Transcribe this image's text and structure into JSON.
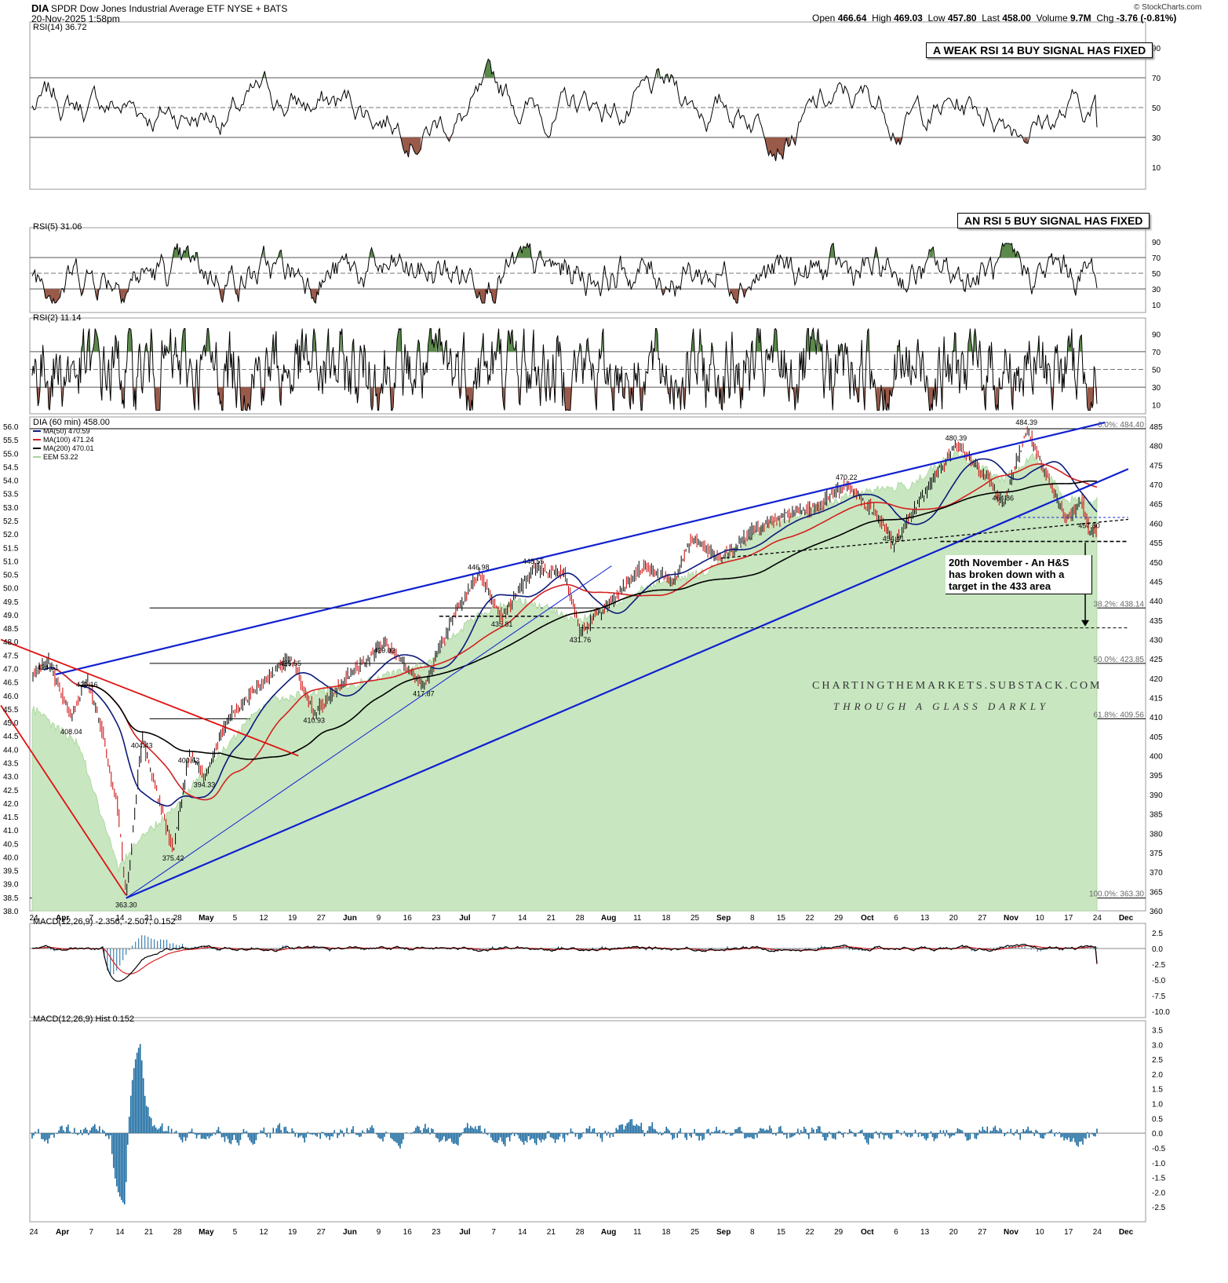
{
  "header": {
    "symbol": "DIA",
    "name": "SPDR Dow Jones Industrial Average ETF",
    "exchange": "NYSE + BATS",
    "datetime": "20-Nov-2025 1:58pm",
    "open_label": "Open",
    "open": "466.64",
    "high_label": "High",
    "high": "469.03",
    "low_label": "Low",
    "low": "457.80",
    "last_label": "Last",
    "last": "458.00",
    "volume_label": "Volume",
    "volume": "9.7M",
    "chg_label": "Chg",
    "chg": "-3.76 (-0.81%)",
    "source": "© StockCharts.com"
  },
  "annotations": {
    "rsi14_note": "A WEAK RSI 14 BUY SIGNAL HAS FIXED",
    "rsi5_note": "AN RSI 5 BUY SIGNAL HAS FIXED",
    "hs_note": "20th November - An H&S has broken down with a target in the 433 area",
    "watermark_line1": "CHARTINGTHEMARKETS.SUBSTACK.COM",
    "watermark_line2": "THROUGH A GLASS DARKLY"
  },
  "colors": {
    "price_up": "#000000",
    "price_down": "#cc0000",
    "ma50": "#0b1a7a",
    "ma100": "#d42020",
    "ma200": "#000000",
    "eem_fill": "#c8e6c0",
    "eem_line": "#a8d59a",
    "trend_blue": "#1020d0",
    "trend_red": "#e01010",
    "rsi_over": "#5a8a4a",
    "rsi_under": "#9a5a4a",
    "macd_hist": "#1a6aa0",
    "macd_signal": "#d42020"
  },
  "x_axis_labels": [
    "24",
    "Apr",
    "7",
    "14",
    "21",
    "28",
    "May",
    "5",
    "12",
    "19",
    "27",
    "Jun",
    "9",
    "16",
    "23",
    "Jul",
    "7",
    "14",
    "21",
    "28",
    "Aug",
    "11",
    "18",
    "25",
    "Sep",
    "8",
    "15",
    "22",
    "29",
    "Oct",
    "6",
    "13",
    "20",
    "27",
    "Nov",
    "10",
    "17",
    "24",
    "Dec"
  ],
  "chart_data": [
    {
      "type": "line",
      "title": "RSI(14) 36.72",
      "ylim": [
        0,
        100
      ],
      "y_ticks": [
        10,
        30,
        50,
        70,
        90
      ],
      "levels": [
        30,
        50,
        70
      ],
      "last": 36.72
    },
    {
      "type": "line",
      "title": "RSI(5) 31.06",
      "ylim": [
        0,
        100
      ],
      "y_ticks": [
        10,
        30,
        50,
        70,
        90
      ],
      "levels": [
        30,
        50,
        70
      ],
      "last": 31.06
    },
    {
      "type": "line",
      "title": "RSI(2) 11.14",
      "ylim": [
        0,
        100
      ],
      "y_ticks": [
        10,
        30,
        50,
        70,
        90
      ],
      "levels": [
        30,
        50,
        70
      ],
      "last": 11.14
    },
    {
      "type": "line",
      "title": "DIA (60 min) 458.00",
      "ylim": [
        360,
        485
      ],
      "y_ticks": [
        360,
        365,
        370,
        375,
        380,
        385,
        390,
        395,
        400,
        405,
        410,
        415,
        420,
        425,
        430,
        435,
        440,
        445,
        450,
        455,
        460,
        465,
        470,
        475,
        480,
        485
      ],
      "left_axis_label": "EEM",
      "left_ylim": [
        38.0,
        56.0
      ],
      "left_ticks": [
        "38.0",
        "38.5",
        "39.0",
        "39.5",
        "40.0",
        "40.5",
        "41.0",
        "41.5",
        "42.0",
        "42.5",
        "43.0",
        "43.5",
        "44.0",
        "44.5",
        "45.0",
        "45.5",
        "46.0",
        "46.5",
        "47.0",
        "47.5",
        "48.0",
        "48.5",
        "49.0",
        "49.5",
        "50.0",
        "50.5",
        "51.0",
        "51.5",
        "52.0",
        "52.5",
        "53.0",
        "53.5",
        "54.0",
        "54.5",
        "55.0",
        "55.5",
        "56.0"
      ],
      "legend": [
        {
          "name": "MA(50) 470.59",
          "color": "#0b1a7a"
        },
        {
          "name": "MA(100) 471.24",
          "color": "#d42020"
        },
        {
          "name": "MA(200) 470.01",
          "color": "#000000"
        },
        {
          "name": "EEM 53.22",
          "color": "#a8d59a"
        }
      ],
      "fib_levels": [
        {
          "label": "0.0%: 484.40",
          "value": 484.4
        },
        {
          "label": "38.2%: 438.14",
          "value": 438.14
        },
        {
          "label": "50.0%: 423.85",
          "value": 423.85
        },
        {
          "label": "61.8%: 409.56",
          "value": 409.56
        },
        {
          "label": "100.0%: 363.30",
          "value": 363.3
        }
      ],
      "price_anchors": [
        {
          "x": 0,
          "y": 421
        },
        {
          "x": 2,
          "y": 424.61
        },
        {
          "x": 5,
          "y": 410
        },
        {
          "x": 7,
          "y": 420.16
        },
        {
          "x": 9,
          "y": 406
        },
        {
          "x": 11,
          "y": 385
        },
        {
          "x": 12,
          "y": 363.3
        },
        {
          "x": 14,
          "y": 404.43
        },
        {
          "x": 16,
          "y": 390
        },
        {
          "x": 18,
          "y": 375.42
        },
        {
          "x": 20,
          "y": 400.62
        },
        {
          "x": 22,
          "y": 394.33
        },
        {
          "x": 25,
          "y": 410
        },
        {
          "x": 29,
          "y": 418
        },
        {
          "x": 33,
          "y": 425.65
        },
        {
          "x": 36,
          "y": 410.93
        },
        {
          "x": 40,
          "y": 420
        },
        {
          "x": 45,
          "y": 429.03
        },
        {
          "x": 50,
          "y": 417.87
        },
        {
          "x": 54,
          "y": 437
        },
        {
          "x": 57,
          "y": 446.98
        },
        {
          "x": 60,
          "y": 435.81
        },
        {
          "x": 64,
          "y": 448.55
        },
        {
          "x": 68,
          "y": 447
        },
        {
          "x": 70,
          "y": 431.76
        },
        {
          "x": 74,
          "y": 440
        },
        {
          "x": 78,
          "y": 449
        },
        {
          "x": 82,
          "y": 445
        },
        {
          "x": 84,
          "y": 456
        },
        {
          "x": 88,
          "y": 451
        },
        {
          "x": 92,
          "y": 458
        },
        {
          "x": 96,
          "y": 462
        },
        {
          "x": 100,
          "y": 464
        },
        {
          "x": 104,
          "y": 470.22
        },
        {
          "x": 108,
          "y": 462
        },
        {
          "x": 110,
          "y": 454.41
        },
        {
          "x": 114,
          "y": 468
        },
        {
          "x": 118,
          "y": 480.39
        },
        {
          "x": 122,
          "y": 472
        },
        {
          "x": 124,
          "y": 464.86
        },
        {
          "x": 127,
          "y": 484.39
        },
        {
          "x": 130,
          "y": 470
        },
        {
          "x": 132,
          "y": 461
        },
        {
          "x": 134,
          "y": 466
        },
        {
          "x": 135,
          "y": 457.8
        },
        {
          "x": 136,
          "y": 458
        }
      ],
      "eem_anchors": [
        {
          "x": 0,
          "y": 45.5
        },
        {
          "x": 6,
          "y": 44.2
        },
        {
          "x": 11,
          "y": 39.5
        },
        {
          "x": 13,
          "y": 40.5
        },
        {
          "x": 17,
          "y": 41.5
        },
        {
          "x": 22,
          "y": 43.2
        },
        {
          "x": 30,
          "y": 45.8
        },
        {
          "x": 40,
          "y": 46.3
        },
        {
          "x": 50,
          "y": 47.1
        },
        {
          "x": 56,
          "y": 48.8
        },
        {
          "x": 62,
          "y": 49.6
        },
        {
          "x": 70,
          "y": 48.8
        },
        {
          "x": 78,
          "y": 50.0
        },
        {
          "x": 86,
          "y": 50.6
        },
        {
          "x": 94,
          "y": 52.3
        },
        {
          "x": 100,
          "y": 52.9
        },
        {
          "x": 106,
          "y": 53.6
        },
        {
          "x": 112,
          "y": 53.8
        },
        {
          "x": 118,
          "y": 55.0
        },
        {
          "x": 124,
          "y": 54.0
        },
        {
          "x": 128,
          "y": 54.9
        },
        {
          "x": 132,
          "y": 53.3
        },
        {
          "x": 136,
          "y": 53.22
        }
      ],
      "price_labels": [
        {
          "text": "424.61",
          "x": 2,
          "y": 424.61
        },
        {
          "text": "420.16",
          "x": 7,
          "y": 420.16
        },
        {
          "text": "408.04",
          "x": 5,
          "y": 408.04
        },
        {
          "text": "404.43",
          "x": 14,
          "y": 404.43
        },
        {
          "text": "400.62",
          "x": 20,
          "y": 400.62
        },
        {
          "text": "394.33",
          "x": 22,
          "y": 394.33
        },
        {
          "text": "375.42",
          "x": 18,
          "y": 375.42
        },
        {
          "text": "363.30",
          "x": 12,
          "y": 363.3
        },
        {
          "text": "425.65",
          "x": 33,
          "y": 425.65
        },
        {
          "text": "410.93",
          "x": 36,
          "y": 410.93
        },
        {
          "text": "429.03",
          "x": 45,
          "y": 429.03
        },
        {
          "text": "417.87",
          "x": 50,
          "y": 417.87
        },
        {
          "text": "446.98",
          "x": 57,
          "y": 446.98
        },
        {
          "text": "435.81",
          "x": 60,
          "y": 435.81
        },
        {
          "text": "448.55",
          "x": 64,
          "y": 448.55
        },
        {
          "text": "431.76",
          "x": 70,
          "y": 431.76
        },
        {
          "text": "470.22",
          "x": 104,
          "y": 470.22
        },
        {
          "text": "454.41",
          "x": 110,
          "y": 454.41
        },
        {
          "text": "480.39",
          "x": 118,
          "y": 480.39
        },
        {
          "text": "464.86",
          "x": 124,
          "y": 464.86
        },
        {
          "text": "484.39",
          "x": 127,
          "y": 484.39
        },
        {
          "text": "457.80",
          "x": 135,
          "y": 457.8
        }
      ],
      "hs_target": 433
    },
    {
      "type": "line",
      "title": "MACD(12,26,9) -2.356, -2.507, 0.152",
      "series": [
        {
          "name": "MACD(12,26,9)",
          "last": -2.356
        },
        {
          "name": "Signal",
          "last": -2.507
        },
        {
          "name": "Hist",
          "last": 0.152
        }
      ],
      "ylim": [
        -11,
        3.5
      ],
      "y_ticks": [
        "2.5",
        "0.0",
        "-2.5",
        "-5.0",
        "-7.5",
        "-10.0"
      ]
    },
    {
      "type": "bar",
      "title": "MACD(12,26,9) Hist 0.152",
      "ylim": [
        -3,
        3.7
      ],
      "y_ticks": [
        "3.5",
        "3.0",
        "2.5",
        "2.0",
        "1.5",
        "1.0",
        "0.5",
        "0.0",
        "-0.5",
        "-1.0",
        "-1.5",
        "-2.0",
        "-2.5"
      ],
      "last": 0.152
    }
  ]
}
